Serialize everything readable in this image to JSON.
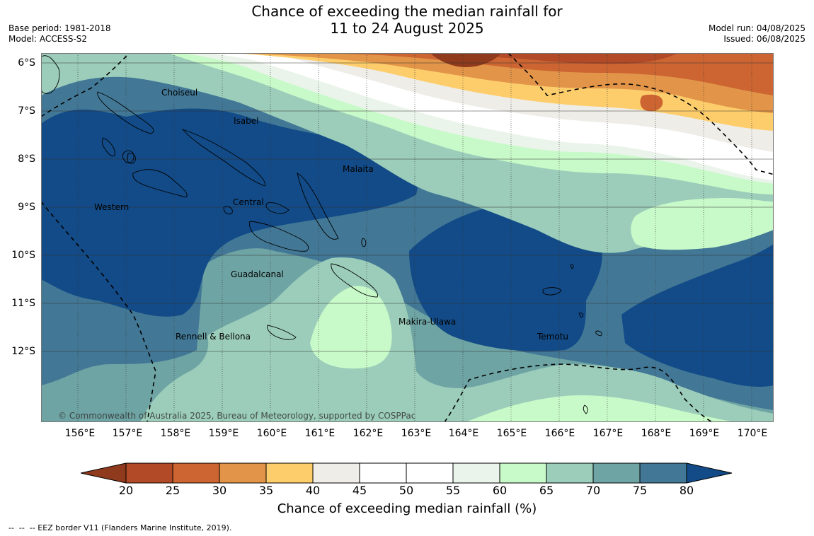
{
  "header": {
    "title_line1": "Chance of exceeding the median rainfall for",
    "title_line2": "11 to 24 August 2025",
    "base_period": "Base period: 1981-2018",
    "model": "Model: ACCESS-S2",
    "model_run": "Model run: 04/08/2025",
    "issued": "Issued: 06/08/2025"
  },
  "map": {
    "lat_labels": [
      "6°S",
      "7°S",
      "8°S",
      "9°S",
      "10°S",
      "11°S",
      "12°S"
    ],
    "lon_labels": [
      "156°E",
      "157°E",
      "158°E",
      "159°E",
      "160°E",
      "161°E",
      "162°E",
      "163°E",
      "164°E",
      "165°E",
      "166°E",
      "167°E",
      "168°E",
      "169°E",
      "170°E"
    ],
    "province_labels": {
      "choiseul": "Choiseul",
      "isabel": "Isabel",
      "malaita": "Malaita",
      "western": "Western",
      "central": "Central",
      "guadalcanal": "Guadalcanal",
      "rennell": "Rennell & Bellona",
      "makira": "Makira-Ulawa",
      "temotu": "Temotu"
    },
    "copyright": "© Commonwealth of Australia 2025, Bureau of Meteorology, supported by COSPPac"
  },
  "colorbar": {
    "label": "Chance of exceeding median rainfall (%)",
    "ticks": [
      "20",
      "25",
      "30",
      "35",
      "40",
      "45",
      "50",
      "55",
      "60",
      "65",
      "70",
      "75",
      "80"
    ],
    "colors": {
      "lt20": "#8f3a1c",
      "c20_25": "#b24a27",
      "c25_30": "#cc6532",
      "c30_35": "#e29449",
      "c35_40": "#fdcd6b",
      "c40_45": "#efede8",
      "c45_50": "#ffffff",
      "c50_55": "#ffffff",
      "c55_60": "#eaf4ea",
      "c60_65": "#c8f9c8",
      "c65_70": "#9bcdba",
      "c70_75": "#6fa4a4",
      "c75_80": "#427896",
      "gt80": "#124b87"
    }
  },
  "footer": {
    "legend_text": "--  --  -- EEZ border V11 (Flanders Marine Institute, 2019)."
  }
}
